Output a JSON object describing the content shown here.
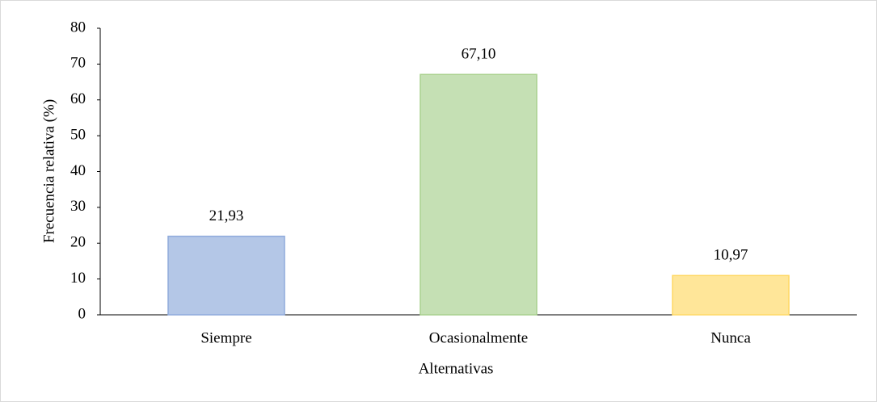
{
  "chart_data": {
    "type": "bar",
    "categories": [
      "Siempre",
      "Ocasionalmente",
      "Nunca"
    ],
    "values": [
      21.93,
      67.1,
      10.97
    ],
    "value_labels": [
      "21,93",
      "67,10",
      "10,97"
    ],
    "colors": [
      "#b4c7e7",
      "#c5e0b4",
      "#ffe699"
    ],
    "edge_colors": [
      "#8faadc",
      "#a9d18e",
      "#ffd966"
    ],
    "xlabel": "Alternativas",
    "ylabel": "Frecuencia relativa (%)",
    "ylim": [
      0,
      80
    ],
    "yticks": [
      0,
      10,
      20,
      30,
      40,
      50,
      60,
      70,
      80
    ],
    "grid": false
  }
}
